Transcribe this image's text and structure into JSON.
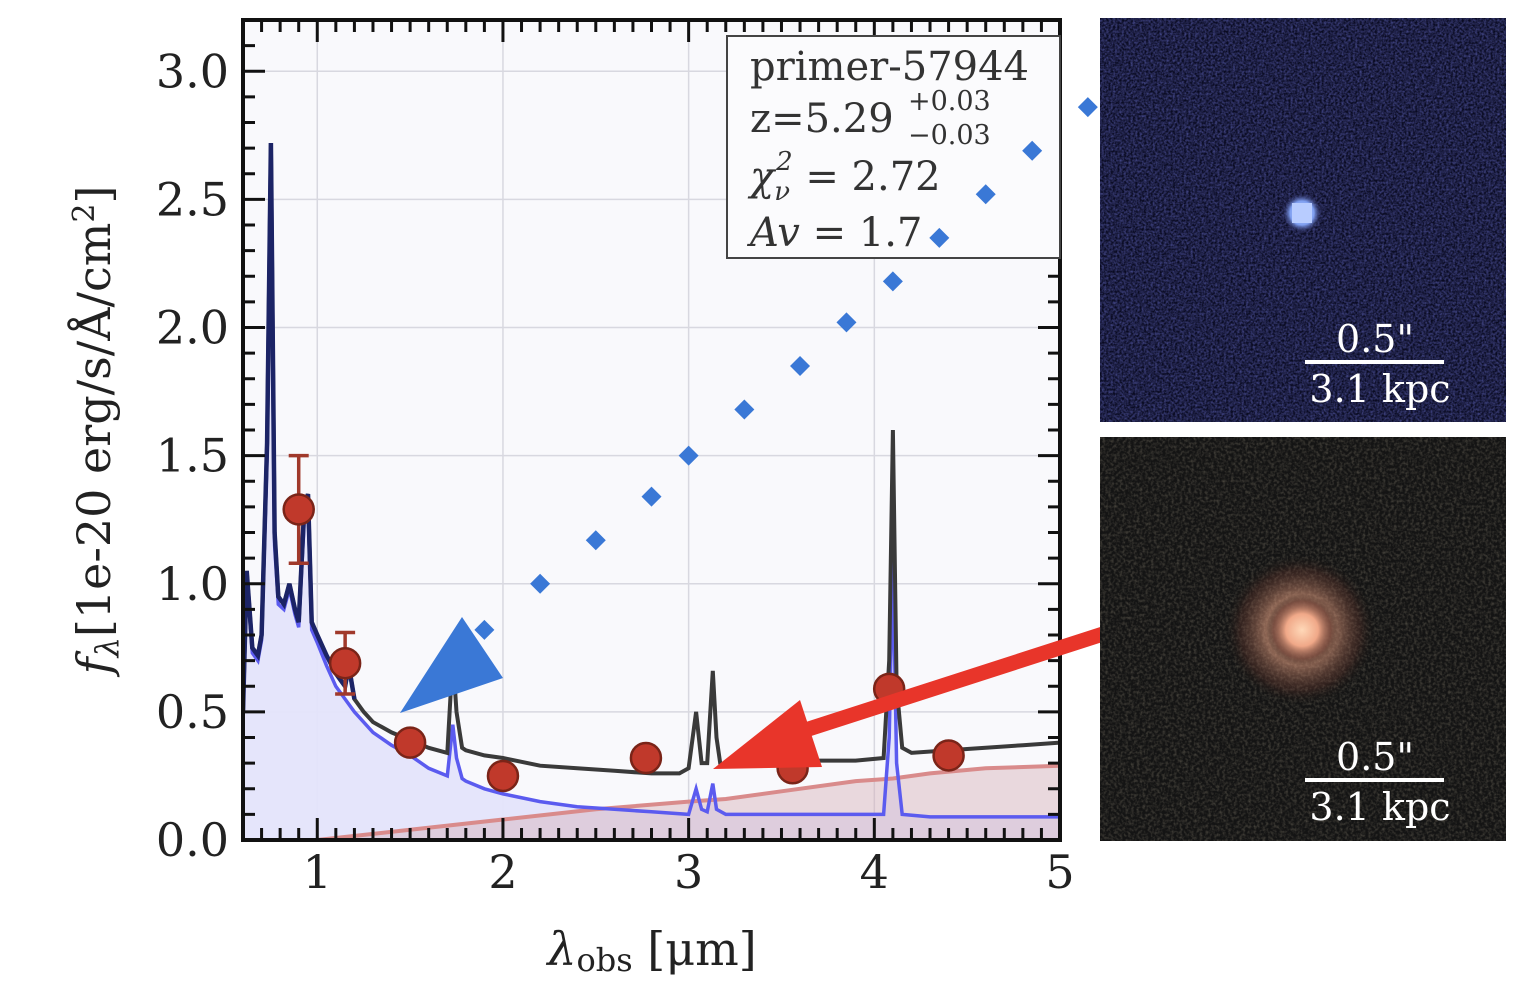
{
  "chart_data": {
    "type": "line",
    "xlabel_sym": "λ",
    "xlabel_sub": "obs",
    "xlabel_rest": " [μm]",
    "ylabel_sym": "f",
    "ylabel_sub": "λ",
    "ylabel_rest": "[1e-20 erg/s/Å/cm",
    "ylabel_sup": "2",
    "ylabel_end": "]",
    "xlim": [
      0.6,
      5.0
    ],
    "ylim": [
      0.0,
      3.2
    ],
    "xticks": [
      1,
      2,
      3,
      4,
      5
    ],
    "xtick_labels": [
      "1",
      "2",
      "3",
      "4",
      "5"
    ],
    "yticks": [
      0.0,
      0.5,
      1.0,
      1.5,
      2.0,
      2.5,
      3.0
    ],
    "ytick_labels": [
      "0.0",
      "0.5",
      "1.0",
      "1.5",
      "2.0",
      "2.5",
      "3.0"
    ],
    "grid": true,
    "legend": {
      "position": "top-right",
      "name": "primer-57944",
      "z_text": "z=5.29",
      "z_up": "+0.03",
      "z_down": "−0.03",
      "chi_sym": "χ",
      "chi_sub": "ν",
      "chi_sup": "2",
      "chi_val": " = 2.72",
      "av_sym": "Av",
      "av_val": " = 1.7"
    },
    "photometry": {
      "x": [
        0.9,
        1.15,
        1.5,
        2.0,
        2.77,
        3.56,
        4.08,
        4.4
      ],
      "y": [
        1.29,
        0.69,
        0.38,
        0.25,
        0.32,
        0.28,
        0.59,
        0.33
      ],
      "yerr": [
        0.21,
        0.12,
        0,
        0,
        0,
        0,
        0,
        0
      ],
      "color": "#c0392b"
    },
    "series": [
      {
        "key": "total",
        "color": "#3a3a3a",
        "x": [
          0.6,
          0.62,
          0.65,
          0.68,
          0.7,
          0.73,
          0.75,
          0.77,
          0.79,
          0.82,
          0.85,
          0.88,
          0.9,
          0.93,
          0.95,
          0.97,
          1.0,
          1.05,
          1.1,
          1.15,
          1.17,
          1.2,
          1.25,
          1.3,
          1.35,
          1.4,
          1.5,
          1.6,
          1.7,
          1.73,
          1.75,
          1.78,
          1.8,
          1.9,
          2.0,
          2.2,
          2.4,
          2.6,
          2.8,
          2.95,
          3.0,
          3.04,
          3.07,
          3.1,
          3.13,
          3.15,
          3.17,
          3.2,
          3.3,
          3.5,
          3.7,
          3.9,
          4.05,
          4.08,
          4.1,
          4.12,
          4.15,
          4.2,
          4.4,
          4.6,
          4.8,
          5.0
        ],
        "y": [
          0.5,
          1.05,
          0.75,
          0.72,
          0.8,
          1.55,
          2.72,
          1.2,
          0.95,
          0.92,
          1.0,
          0.9,
          0.85,
          1.3,
          1.35,
          0.85,
          0.8,
          0.72,
          0.65,
          0.6,
          0.68,
          0.55,
          0.5,
          0.46,
          0.44,
          0.42,
          0.39,
          0.36,
          0.34,
          0.72,
          0.5,
          0.36,
          0.35,
          0.33,
          0.32,
          0.29,
          0.28,
          0.27,
          0.26,
          0.26,
          0.28,
          0.5,
          0.3,
          0.3,
          0.66,
          0.4,
          0.3,
          0.29,
          0.29,
          0.3,
          0.31,
          0.31,
          0.32,
          0.7,
          1.6,
          0.6,
          0.36,
          0.34,
          0.35,
          0.36,
          0.37,
          0.38
        ]
      },
      {
        "key": "young",
        "color": "#5b5bef",
        "x": [
          0.6,
          0.62,
          0.65,
          0.68,
          0.7,
          0.73,
          0.75,
          0.77,
          0.79,
          0.82,
          0.85,
          0.88,
          0.9,
          0.93,
          0.95,
          0.97,
          1.0,
          1.05,
          1.1,
          1.15,
          1.2,
          1.3,
          1.4,
          1.5,
          1.6,
          1.7,
          1.73,
          1.75,
          1.78,
          1.8,
          1.9,
          2.0,
          2.2,
          2.4,
          2.6,
          2.8,
          3.0,
          3.04,
          3.07,
          3.1,
          3.13,
          3.15,
          3.2,
          3.5,
          3.8,
          4.05,
          4.08,
          4.1,
          4.12,
          4.15,
          4.3,
          4.6,
          5.0
        ],
        "y": [
          0.48,
          1.03,
          0.73,
          0.7,
          0.78,
          1.5,
          2.7,
          1.15,
          0.92,
          0.9,
          0.98,
          0.88,
          0.83,
          1.25,
          1.3,
          0.82,
          0.77,
          0.68,
          0.6,
          0.55,
          0.5,
          0.42,
          0.37,
          0.33,
          0.28,
          0.25,
          0.45,
          0.32,
          0.24,
          0.23,
          0.2,
          0.18,
          0.15,
          0.13,
          0.12,
          0.11,
          0.1,
          0.2,
          0.12,
          0.11,
          0.22,
          0.12,
          0.1,
          0.1,
          0.1,
          0.1,
          0.4,
          1.1,
          0.3,
          0.1,
          0.09,
          0.09,
          0.09
        ]
      },
      {
        "key": "old",
        "color": "#d98b8b",
        "x": [
          0.6,
          1.0,
          1.5,
          2.0,
          2.5,
          3.0,
          3.2,
          3.5,
          3.9,
          4.1,
          4.3,
          4.6,
          5.0
        ],
        "y": [
          0.0,
          0.0,
          0.04,
          0.08,
          0.12,
          0.15,
          0.16,
          0.19,
          0.23,
          0.24,
          0.26,
          0.28,
          0.29
        ]
      }
    ],
    "model_photometry": {
      "x": [
        0.62,
        0.95,
        1.15,
        1.4,
        1.6,
        1.9,
        2.2,
        2.5,
        2.8,
        3.0,
        3.3,
        3.6,
        3.85,
        4.1,
        4.35,
        4.6,
        4.85,
        5.15
      ],
      "y": [
        0.28,
        0.35,
        0.62,
        0.75,
        0.73,
        0.82,
        1.0,
        1.17,
        1.34,
        1.5,
        1.68,
        1.85,
        2.02,
        2.18,
        2.35,
        2.52,
        2.69,
        2.86
      ],
      "color": "#3a78d6",
      "visible_from_index": 5
    },
    "annotations": [
      {
        "kind": "triangle",
        "color": "#3a78d6"
      },
      {
        "kind": "arrow",
        "color": "#e8352a"
      }
    ]
  },
  "cutouts": [
    {
      "scale_top": "0.5\"",
      "scale_bottom": "3.1 kpc",
      "style": "blue"
    },
    {
      "scale_top": "0.5\"",
      "scale_bottom": "3.1 kpc",
      "style": "red"
    }
  ],
  "colors": {
    "panel_bg": "#f9f9fc",
    "grid": "#d8d8e0",
    "young_fill": "#e4e4fb",
    "old_fill": "#d4b0b8"
  }
}
